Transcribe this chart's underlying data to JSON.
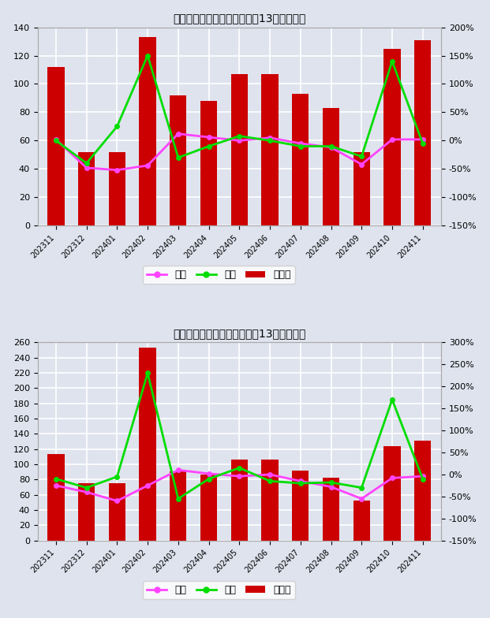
{
  "categories": [
    "202311",
    "202312",
    "202401",
    "202402",
    "202403",
    "202404",
    "202405",
    "202406",
    "202407",
    "202408",
    "202409",
    "202410",
    "202411"
  ],
  "chart1": {
    "title": "中国綠碳化硅全部生产商过去13个月产销率",
    "bar_values": [
      112,
      52,
      52,
      133,
      92,
      88,
      107,
      107,
      93,
      83,
      52,
      125,
      131
    ],
    "tongbi": [
      2,
      -48,
      -52,
      -44,
      12,
      6,
      0,
      5,
      -5,
      -12,
      -42,
      2,
      2
    ],
    "huanbi": [
      0,
      -40,
      25,
      150,
      -30,
      -10,
      8,
      0,
      -10,
      -10,
      -28,
      140,
      -5
    ],
    "ylim_left": [
      0,
      140
    ],
    "ylim_right": [
      -150,
      200
    ],
    "yticks_left": [
      0,
      20,
      40,
      60,
      80,
      100,
      120,
      140
    ],
    "yticks_right_vals": [
      -150,
      -100,
      -50,
      0,
      50,
      100,
      150,
      200
    ],
    "yticks_right_labels": [
      "-150%",
      "-100%",
      "-50%",
      "0%",
      "50%",
      "100%",
      "150%",
      "200%"
    ]
  },
  "chart2": {
    "title": "中国綠碳化硅在产生产商过去13个月产销率",
    "bar_values": [
      113,
      75,
      75,
      253,
      91,
      87,
      106,
      106,
      92,
      82,
      53,
      124,
      131
    ],
    "tongbi": [
      -25,
      -40,
      -60,
      -25,
      10,
      2,
      -4,
      0,
      -15,
      -28,
      -55,
      -8,
      -4
    ],
    "huanbi": [
      -10,
      -30,
      -5,
      230,
      -55,
      -10,
      15,
      -15,
      -20,
      -18,
      -30,
      170,
      -10
    ],
    "ylim_left": [
      0,
      260
    ],
    "ylim_right": [
      -150,
      300
    ],
    "yticks_left": [
      0,
      20,
      40,
      60,
      80,
      100,
      120,
      140,
      160,
      180,
      200,
      220,
      240,
      260
    ],
    "yticks_right_vals": [
      -150,
      -100,
      -50,
      0,
      50,
      100,
      150,
      200,
      250,
      300
    ],
    "yticks_right_labels": [
      "-150%",
      "-100%",
      "-50%",
      "0%",
      "50%",
      "100%",
      "150%",
      "200%",
      "250%",
      "300%"
    ]
  },
  "bar_color": "#cc0000",
  "tongbi_color": "#ff44ff",
  "huanbi_color": "#00dd00",
  "background_color": "#dfe3ee",
  "plot_bg_color": "#dfe3ee",
  "grid_color": "#ffffff",
  "legend_tongbi": "同比",
  "legend_huanbi": "环比",
  "legend_bar": "产销率"
}
